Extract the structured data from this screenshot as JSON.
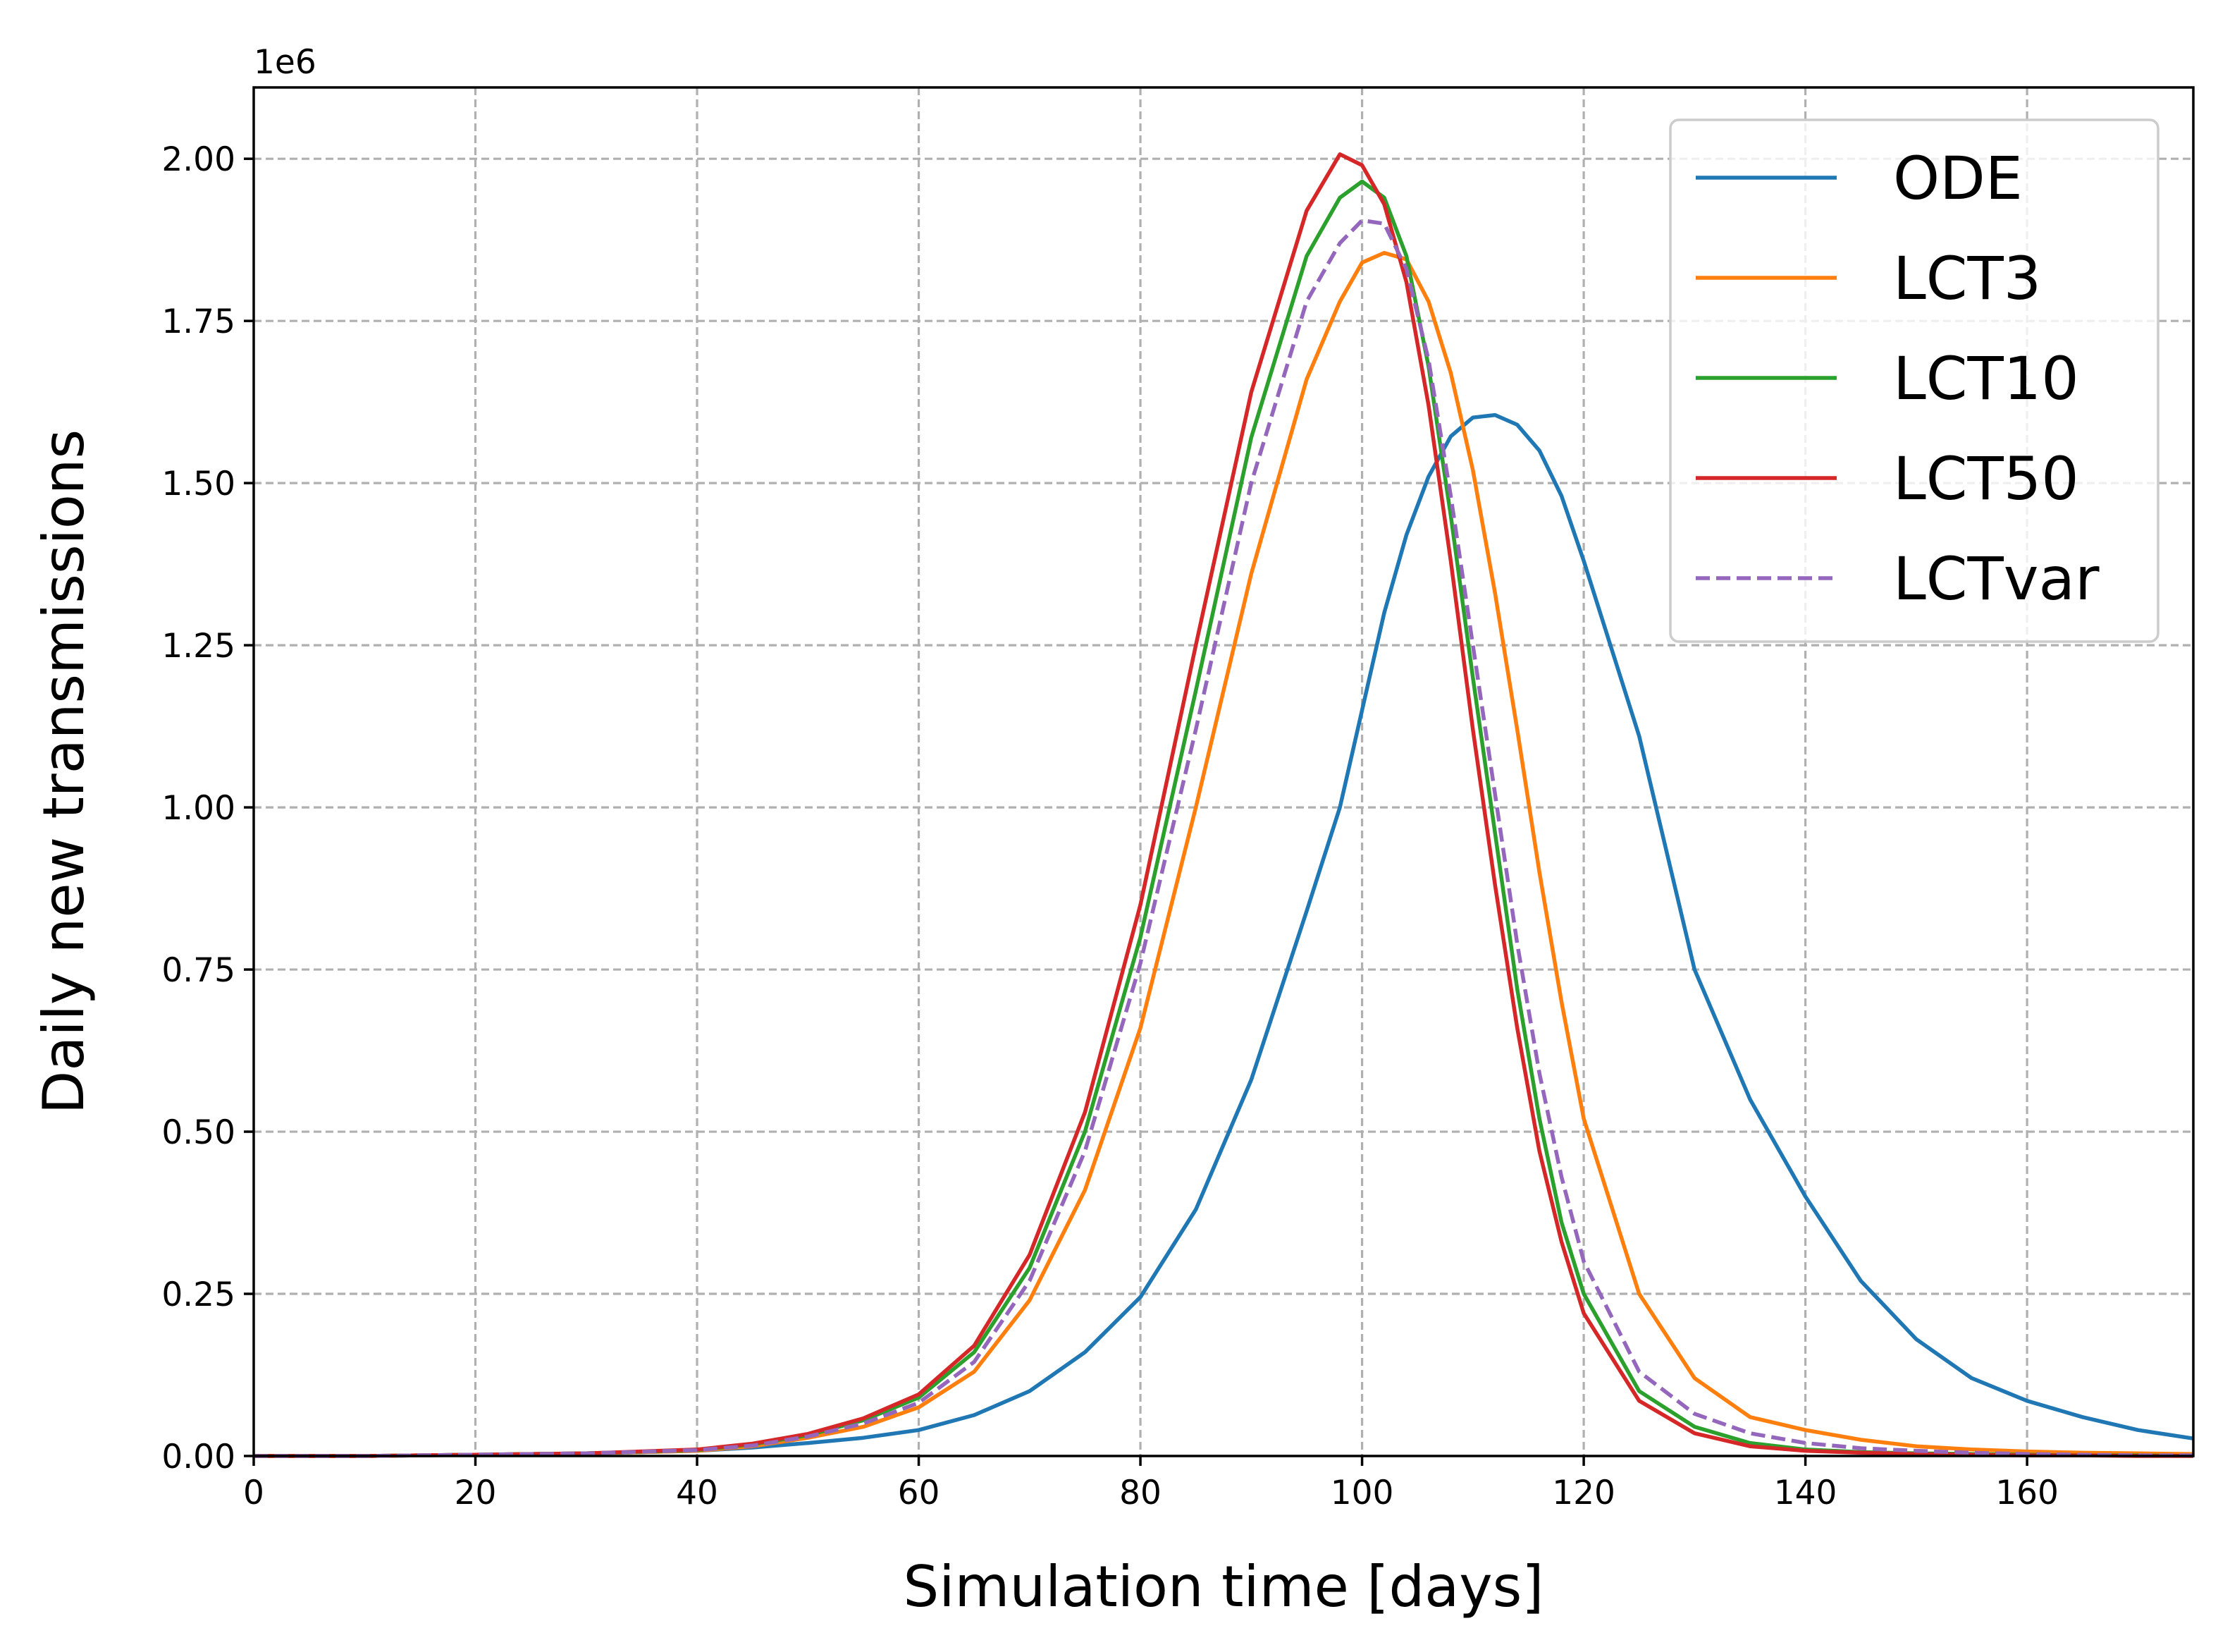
{
  "chart_data": {
    "type": "line",
    "title": "",
    "xlabel": "Simulation time [days]",
    "ylabel": "Daily new transmissions",
    "y_offset_text": "1e6",
    "xlim": [
      0,
      175
    ],
    "ylim": [
      0,
      2.11
    ],
    "xticks": [
      0,
      20,
      40,
      60,
      80,
      100,
      120,
      140,
      160
    ],
    "xtick_labels": [
      "0",
      "20",
      "40",
      "60",
      "80",
      "100",
      "120",
      "140",
      "160"
    ],
    "yticks": [
      0,
      0.25,
      0.5,
      0.75,
      1.0,
      1.25,
      1.5,
      1.75,
      2.0
    ],
    "ytick_labels": [
      "0.00",
      "0.25",
      "0.50",
      "0.75",
      "1.00",
      "1.25",
      "1.50",
      "1.75",
      "2.00"
    ],
    "grid": true,
    "legend_position": "top-right",
    "x": [
      0,
      10,
      20,
      30,
      40,
      45,
      50,
      55,
      60,
      65,
      70,
      75,
      80,
      85,
      90,
      95,
      98,
      100,
      102,
      104,
      106,
      108,
      110,
      112,
      114,
      116,
      118,
      120,
      125,
      130,
      135,
      140,
      145,
      150,
      155,
      160,
      165,
      170,
      175
    ],
    "series": [
      {
        "name": "ODE",
        "color": "#1f77b4",
        "dash": false,
        "values": [
          0.0,
          0.0,
          0.002,
          0.004,
          0.008,
          0.013,
          0.02,
          0.028,
          0.04,
          0.063,
          0.1,
          0.16,
          0.245,
          0.38,
          0.58,
          0.84,
          1.0,
          1.15,
          1.3,
          1.42,
          1.51,
          1.572,
          1.601,
          1.605,
          1.59,
          1.55,
          1.48,
          1.38,
          1.11,
          0.75,
          0.55,
          0.4,
          0.27,
          0.18,
          0.12,
          0.085,
          0.06,
          0.04,
          0.027
        ]
      },
      {
        "name": "LCT3",
        "color": "#ff7f0e",
        "dash": false,
        "values": [
          0.0,
          0.0,
          0.002,
          0.004,
          0.008,
          0.015,
          0.028,
          0.045,
          0.075,
          0.13,
          0.24,
          0.41,
          0.66,
          1.0,
          1.36,
          1.66,
          1.78,
          1.84,
          1.855,
          1.845,
          1.78,
          1.67,
          1.52,
          1.33,
          1.12,
          0.9,
          0.7,
          0.52,
          0.25,
          0.12,
          0.06,
          0.04,
          0.025,
          0.015,
          0.01,
          0.007,
          0.005,
          0.004,
          0.003
        ]
      },
      {
        "name": "LCT10",
        "color": "#2ca02c",
        "dash": false,
        "values": [
          0.0,
          0.0,
          0.002,
          0.004,
          0.009,
          0.018,
          0.032,
          0.055,
          0.09,
          0.16,
          0.29,
          0.5,
          0.8,
          1.18,
          1.57,
          1.85,
          1.94,
          1.965,
          1.94,
          1.85,
          1.68,
          1.45,
          1.2,
          0.96,
          0.72,
          0.52,
          0.36,
          0.25,
          0.1,
          0.045,
          0.02,
          0.01,
          0.006,
          0.004,
          0.003,
          0.002,
          0.001,
          0.001,
          0.0
        ]
      },
      {
        "name": "LCT50",
        "color": "#d62728",
        "dash": false,
        "values": [
          0.0,
          0.0,
          0.002,
          0.004,
          0.01,
          0.019,
          0.034,
          0.058,
          0.095,
          0.17,
          0.31,
          0.53,
          0.85,
          1.25,
          1.64,
          1.92,
          2.007,
          1.99,
          1.93,
          1.81,
          1.62,
          1.38,
          1.12,
          0.88,
          0.66,
          0.47,
          0.33,
          0.22,
          0.085,
          0.035,
          0.015,
          0.008,
          0.005,
          0.003,
          0.002,
          0.001,
          0.001,
          0.0,
          0.0
        ]
      },
      {
        "name": "LCTvar",
        "color": "#9467bd",
        "dash": true,
        "values": [
          0.0,
          0.0,
          0.002,
          0.004,
          0.009,
          0.016,
          0.03,
          0.05,
          0.082,
          0.145,
          0.27,
          0.47,
          0.76,
          1.12,
          1.5,
          1.78,
          1.87,
          1.905,
          1.9,
          1.83,
          1.69,
          1.48,
          1.25,
          1.02,
          0.79,
          0.59,
          0.43,
          0.3,
          0.13,
          0.065,
          0.035,
          0.02,
          0.012,
          0.008,
          0.005,
          0.003,
          0.002,
          0.001,
          0.001
        ]
      }
    ]
  }
}
